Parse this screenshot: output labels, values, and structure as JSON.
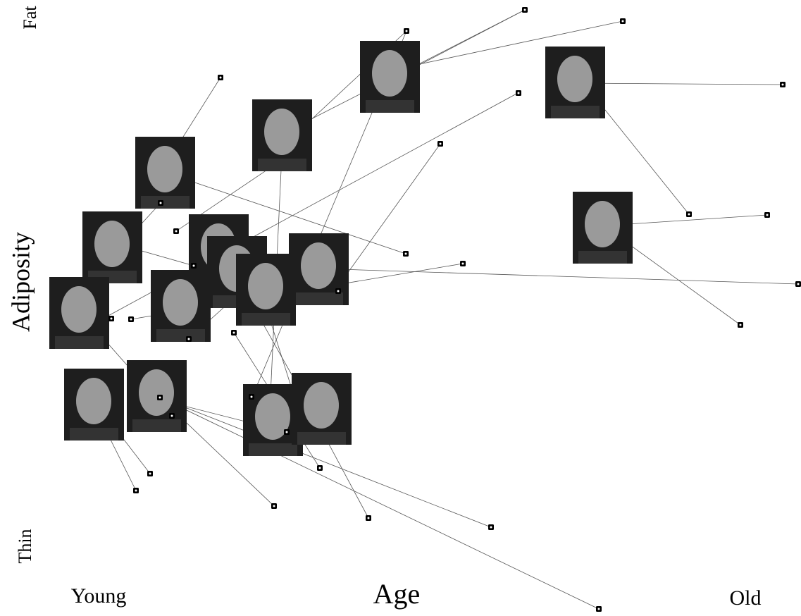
{
  "axes": {
    "x_label": "Age",
    "x_low": "Young",
    "x_high": "Old",
    "y_label": "Adiposity",
    "y_low": "Thin",
    "y_high": "Fat"
  }
}
